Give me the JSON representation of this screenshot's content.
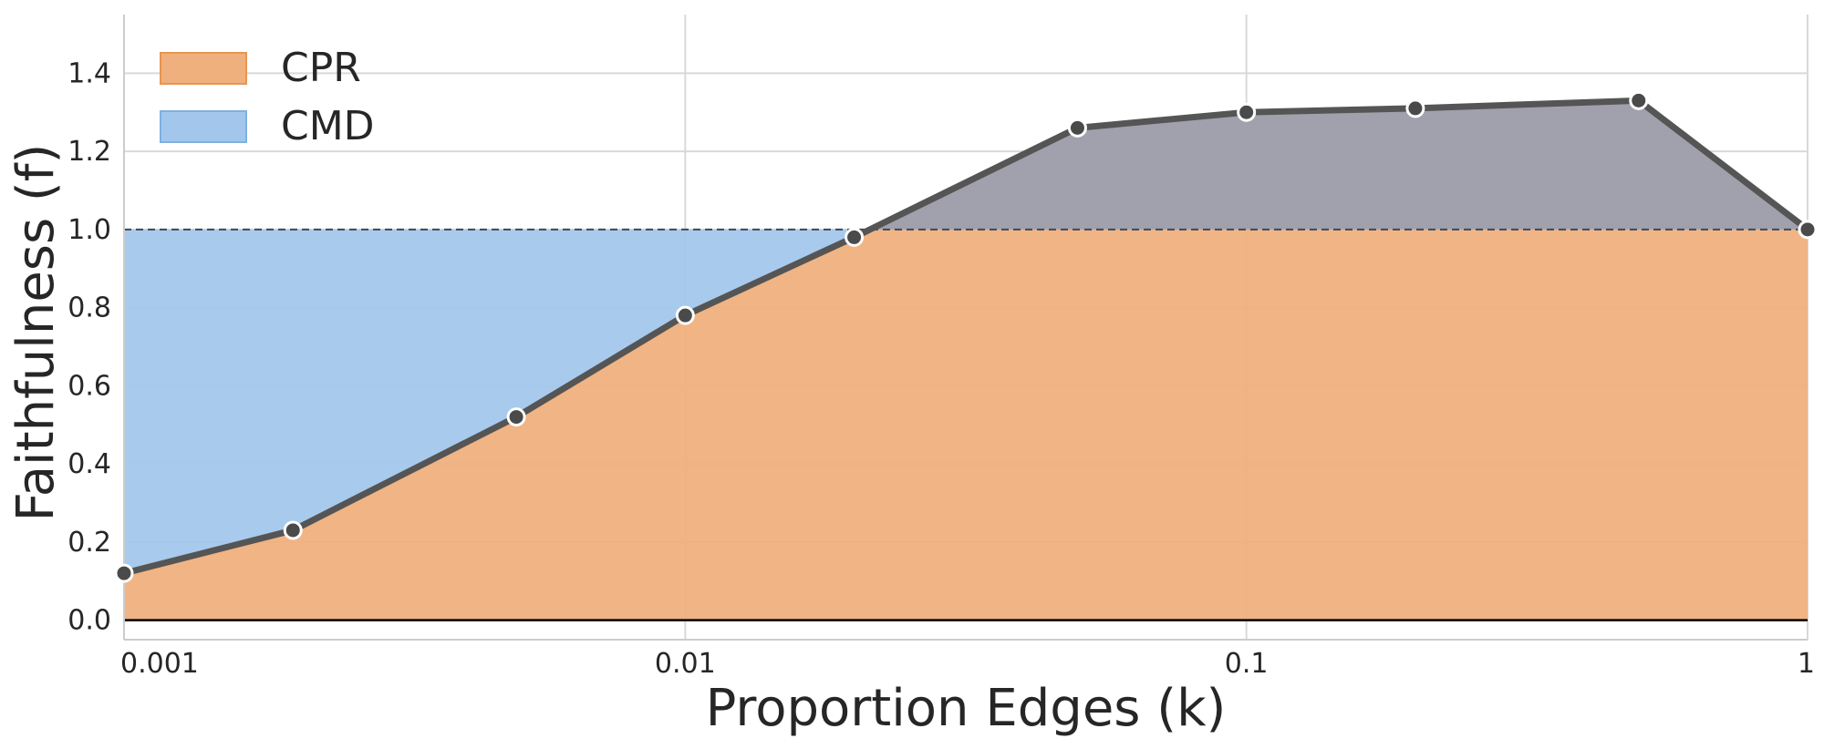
{
  "chart_data": {
    "type": "area",
    "xscale": "log",
    "xlabel": "Proportion Edges (k)",
    "ylabel": "Faithfulness (f)",
    "xlim": [
      0.001,
      1
    ],
    "ylim": [
      -0.05,
      1.55
    ],
    "xticks": [
      {
        "value": 0.001,
        "label": "0.001"
      },
      {
        "value": 0.01,
        "label": "0.01"
      },
      {
        "value": 0.1,
        "label": "0.1"
      },
      {
        "value": 1,
        "label": "1"
      }
    ],
    "yticks": [
      {
        "value": 0.0,
        "label": "0.0"
      },
      {
        "value": 0.2,
        "label": "0.2"
      },
      {
        "value": 0.4,
        "label": "0.4"
      },
      {
        "value": 0.6,
        "label": "0.6"
      },
      {
        "value": 0.8,
        "label": "0.8"
      },
      {
        "value": 1.0,
        "label": "1.0"
      },
      {
        "value": 1.2,
        "label": "1.2"
      },
      {
        "value": 1.4,
        "label": "1.4"
      }
    ],
    "reference_line": 1.0,
    "grid": true,
    "legend_position": "top-left",
    "legend": [
      {
        "label": "CPR",
        "color": "#f0b07e",
        "edge": "#e8954f"
      },
      {
        "label": "CMD",
        "color": "#a3c7ec",
        "edge": "#7fb0e0"
      }
    ],
    "series": [
      {
        "x": [
          0.001,
          0.002,
          0.005,
          0.01,
          0.02,
          0.05,
          0.1,
          0.2,
          0.5,
          1
        ],
        "y": [
          0.12,
          0.23,
          0.52,
          0.78,
          0.98,
          1.26,
          1.3,
          1.31,
          1.33,
          1.0
        ]
      }
    ],
    "colors": {
      "line": "#555555",
      "marker": "#4a4a4a",
      "marker_edge": "#ffffff",
      "excess_fill": "#a1a1ad",
      "reference_line": "#3a4a5a",
      "zero_line": "#000000"
    }
  }
}
